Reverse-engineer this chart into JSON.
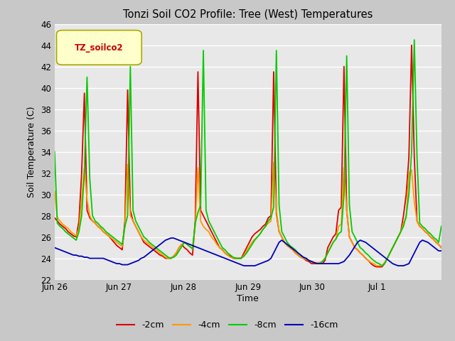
{
  "title": "Tonzi Soil CO2 Profile: Tree (West) Temperatures",
  "xlabel": "Time",
  "ylabel": "Soil Temperature (C)",
  "legend_label": "TZ_soilco2",
  "ylim": [
    22,
    46
  ],
  "yticks": [
    22,
    24,
    26,
    28,
    30,
    32,
    34,
    36,
    38,
    40,
    42,
    44,
    46
  ],
  "line_colors": {
    "-2cm": "#dd0000",
    "-4cm": "#ff9900",
    "-8cm": "#00cc00",
    "-16cm": "#0000bb"
  },
  "fig_bg": "#c8c8c8",
  "axes_bg": "#e8e8e8",
  "grid_color": "#ffffff",
  "x_tick_labels": [
    "Jun 26",
    "Jun 27",
    "Jun 28",
    "Jun 29",
    "Jun 30",
    "Jul 1"
  ],
  "x_tick_positions": [
    0,
    24,
    48,
    72,
    96,
    120
  ],
  "total_hours": 144,
  "series": {
    "-2cm": [
      27.8,
      27.5,
      27.2,
      27.0,
      26.8,
      26.5,
      26.3,
      26.1,
      26.0,
      27.5,
      32.0,
      39.5,
      28.5,
      27.8,
      27.5,
      27.3,
      27.0,
      26.8,
      26.5,
      26.3,
      26.1,
      25.8,
      25.5,
      25.2,
      25.0,
      24.8,
      27.5,
      39.8,
      28.5,
      27.5,
      27.0,
      26.5,
      26.0,
      25.5,
      25.3,
      25.1,
      24.9,
      24.7,
      24.5,
      24.3,
      24.2,
      24.0,
      24.0,
      24.0,
      24.2,
      24.5,
      25.0,
      25.3,
      25.0,
      24.8,
      24.5,
      24.3,
      27.5,
      41.5,
      28.5,
      28.0,
      27.5,
      27.0,
      26.5,
      26.0,
      25.5,
      25.0,
      24.8,
      24.5,
      24.3,
      24.2,
      24.0,
      24.0,
      24.0,
      24.0,
      24.5,
      25.0,
      25.5,
      26.0,
      26.3,
      26.5,
      26.7,
      27.0,
      27.2,
      27.8,
      28.0,
      41.5,
      28.2,
      26.5,
      26.0,
      25.5,
      25.2,
      25.0,
      24.8,
      24.5,
      24.3,
      24.1,
      24.0,
      23.8,
      23.7,
      23.5,
      23.5,
      23.5,
      23.5,
      23.5,
      23.8,
      25.0,
      25.5,
      26.0,
      26.3,
      28.5,
      28.8,
      42.0,
      28.5,
      26.0,
      25.5,
      25.0,
      24.8,
      24.5,
      24.3,
      24.0,
      23.8,
      23.5,
      23.3,
      23.2,
      23.2,
      23.2,
      23.5,
      24.0,
      24.5,
      25.0,
      25.5,
      26.0,
      26.5,
      28.0,
      30.0,
      33.5,
      44.0,
      33.5,
      27.5,
      27.0,
      26.8,
      26.5,
      26.3,
      26.0,
      25.8,
      25.5,
      25.3,
      25.0
    ],
    "-4cm": [
      30.3,
      27.8,
      27.5,
      27.2,
      27.0,
      26.8,
      26.5,
      26.3,
      26.1,
      26.8,
      29.5,
      32.5,
      29.5,
      28.0,
      27.5,
      27.3,
      27.0,
      26.8,
      26.5,
      26.3,
      26.1,
      25.9,
      25.7,
      25.5,
      25.3,
      25.1,
      27.0,
      32.8,
      28.0,
      27.5,
      27.0,
      26.5,
      26.0,
      25.7,
      25.5,
      25.3,
      25.1,
      24.9,
      24.7,
      24.5,
      24.3,
      24.1,
      24.0,
      24.0,
      24.2,
      24.5,
      25.0,
      25.3,
      25.5,
      25.3,
      25.1,
      24.9,
      27.0,
      32.5,
      27.5,
      27.0,
      26.7,
      26.5,
      26.0,
      25.7,
      25.3,
      25.0,
      24.8,
      24.5,
      24.3,
      24.1,
      24.0,
      24.0,
      24.0,
      24.0,
      24.3,
      24.7,
      25.1,
      25.5,
      25.8,
      26.0,
      26.3,
      26.7,
      27.0,
      27.3,
      27.5,
      33.0,
      28.5,
      26.5,
      26.0,
      25.5,
      25.2,
      25.0,
      24.8,
      24.5,
      24.3,
      24.1,
      24.0,
      23.9,
      23.8,
      23.7,
      23.6,
      23.6,
      23.6,
      23.7,
      24.0,
      24.5,
      25.0,
      25.5,
      25.8,
      27.0,
      27.2,
      32.5,
      28.5,
      26.0,
      25.5,
      25.0,
      24.8,
      24.5,
      24.3,
      24.0,
      23.8,
      23.6,
      23.5,
      23.3,
      23.3,
      23.3,
      23.6,
      24.0,
      24.5,
      25.0,
      25.5,
      26.0,
      26.5,
      27.3,
      27.8,
      32.0,
      32.3,
      29.3,
      27.5,
      27.0,
      26.8,
      26.5,
      26.3,
      26.0,
      25.8,
      25.5,
      25.3,
      25.0
    ],
    "-8cm": [
      34.0,
      27.3,
      27.0,
      26.8,
      26.5,
      26.3,
      26.1,
      25.9,
      25.7,
      26.5,
      28.0,
      32.0,
      41.0,
      31.5,
      28.0,
      27.5,
      27.3,
      27.0,
      26.8,
      26.5,
      26.3,
      26.1,
      25.9,
      25.7,
      25.5,
      25.3,
      27.0,
      28.0,
      42.0,
      28.5,
      27.5,
      27.0,
      26.5,
      26.0,
      25.8,
      25.5,
      25.3,
      25.1,
      24.9,
      24.7,
      24.5,
      24.3,
      24.1,
      24.0,
      24.1,
      24.3,
      24.7,
      25.1,
      25.5,
      25.3,
      25.1,
      24.9,
      27.3,
      28.3,
      29.0,
      43.5,
      28.5,
      27.5,
      27.0,
      26.5,
      26.0,
      25.5,
      25.0,
      24.8,
      24.5,
      24.3,
      24.1,
      24.0,
      24.0,
      24.0,
      24.2,
      24.5,
      24.9,
      25.3,
      25.7,
      26.0,
      26.3,
      26.7,
      27.0,
      27.5,
      27.8,
      28.8,
      43.5,
      29.0,
      26.5,
      26.0,
      25.5,
      25.2,
      25.0,
      24.8,
      24.5,
      24.3,
      24.1,
      24.0,
      23.8,
      23.7,
      23.6,
      23.5,
      23.5,
      23.7,
      24.0,
      24.5,
      25.0,
      25.5,
      25.8,
      26.3,
      26.5,
      30.0,
      43.0,
      29.0,
      26.5,
      26.0,
      25.5,
      25.0,
      24.8,
      24.5,
      24.3,
      24.0,
      23.8,
      23.6,
      23.5,
      23.3,
      23.5,
      24.0,
      24.5,
      25.0,
      25.5,
      26.0,
      26.5,
      27.0,
      28.0,
      30.0,
      34.0,
      44.5,
      33.5,
      27.3,
      27.0,
      26.8,
      26.5,
      26.3,
      26.0,
      25.8,
      25.5,
      27.0
    ],
    "-16cm": [
      25.0,
      24.9,
      24.8,
      24.7,
      24.6,
      24.5,
      24.4,
      24.3,
      24.3,
      24.2,
      24.2,
      24.1,
      24.1,
      24.0,
      24.0,
      24.0,
      24.0,
      24.0,
      24.0,
      23.9,
      23.8,
      23.7,
      23.6,
      23.5,
      23.5,
      23.4,
      23.4,
      23.4,
      23.5,
      23.6,
      23.7,
      23.8,
      24.0,
      24.1,
      24.3,
      24.5,
      24.7,
      24.9,
      25.1,
      25.3,
      25.5,
      25.7,
      25.8,
      25.9,
      25.9,
      25.8,
      25.7,
      25.6,
      25.5,
      25.4,
      25.3,
      25.2,
      25.1,
      25.0,
      24.9,
      24.8,
      24.7,
      24.6,
      24.5,
      24.4,
      24.3,
      24.2,
      24.1,
      24.0,
      23.9,
      23.8,
      23.7,
      23.6,
      23.5,
      23.4,
      23.3,
      23.3,
      23.3,
      23.3,
      23.3,
      23.4,
      23.5,
      23.6,
      23.7,
      23.8,
      24.0,
      24.5,
      25.0,
      25.5,
      25.7,
      25.5,
      25.3,
      25.1,
      24.9,
      24.7,
      24.5,
      24.3,
      24.1,
      24.0,
      23.8,
      23.7,
      23.6,
      23.5,
      23.5,
      23.5,
      23.5,
      23.5,
      23.5,
      23.5,
      23.5,
      23.5,
      23.6,
      23.7,
      24.0,
      24.3,
      24.7,
      25.1,
      25.5,
      25.7,
      25.6,
      25.5,
      25.3,
      25.1,
      24.9,
      24.7,
      24.5,
      24.3,
      24.1,
      23.9,
      23.7,
      23.5,
      23.4,
      23.3,
      23.3,
      23.3,
      23.4,
      23.5,
      24.0,
      24.5,
      25.0,
      25.5,
      25.7,
      25.6,
      25.5,
      25.3,
      25.1,
      24.9,
      24.7,
      24.7
    ]
  }
}
